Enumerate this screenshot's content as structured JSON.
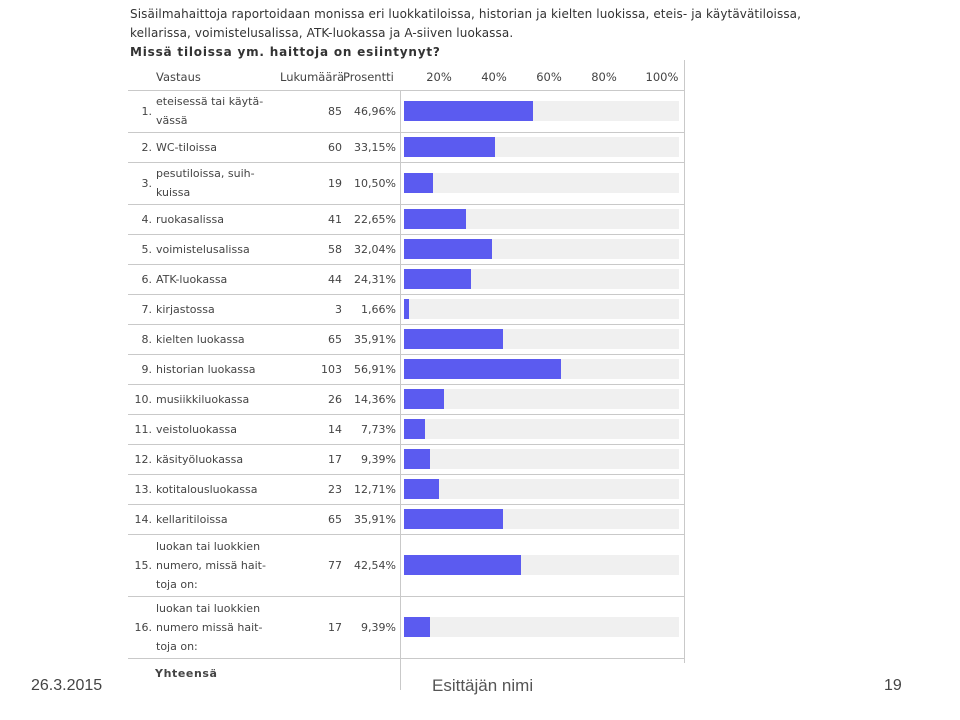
{
  "intro": {
    "line1": "Sisäilmahaittoja raportoidaan monissa eri luokkatiloissa, historian ja kielten luokissa, eteis- ja käytävätiloissa,",
    "line2": "kellarissa, voimistelusalissa, ATK-luokassa ja A-siiven luokassa.",
    "question": "Missä tiloissa ym. haittoja on esiintynyt?"
  },
  "table": {
    "headers": {
      "answer": "Vastaus",
      "count": "Lukumäärä",
      "percent": "Prosentti"
    },
    "total_label": "Yhteensä"
  },
  "chart_data": {
    "type": "bar",
    "orientation": "horizontal",
    "ticks": [
      "20%",
      "40%",
      "60%",
      "80%",
      "100%"
    ],
    "xlim": [
      0,
      100
    ],
    "bar_color": "#5b5bf0",
    "rows": [
      {
        "no": "1.",
        "lines": [
          "eteisessä tai käytä-",
          "vässä"
        ],
        "count": "85",
        "percent": "46,96%",
        "value": 46.96
      },
      {
        "no": "2.",
        "lines": [
          "WC-tiloissa"
        ],
        "count": "60",
        "percent": "33,15%",
        "value": 33.15
      },
      {
        "no": "3.",
        "lines": [
          "pesutiloissa, suih-",
          "kuissa"
        ],
        "count": "19",
        "percent": "10,50%",
        "value": 10.5
      },
      {
        "no": "4.",
        "lines": [
          "ruokasalissa"
        ],
        "count": "41",
        "percent": "22,65%",
        "value": 22.65
      },
      {
        "no": "5.",
        "lines": [
          "voimistelusalissa"
        ],
        "count": "58",
        "percent": "32,04%",
        "value": 32.04
      },
      {
        "no": "6.",
        "lines": [
          "ATK-luokassa"
        ],
        "count": "44",
        "percent": "24,31%",
        "value": 24.31
      },
      {
        "no": "7.",
        "lines": [
          "kirjastossa"
        ],
        "count": "3",
        "percent": "1,66%",
        "value": 1.66
      },
      {
        "no": "8.",
        "lines": [
          "kielten luokassa"
        ],
        "count": "65",
        "percent": "35,91%",
        "value": 35.91
      },
      {
        "no": "9.",
        "lines": [
          "historian luokassa"
        ],
        "count": "103",
        "percent": "56,91%",
        "value": 56.91
      },
      {
        "no": "10.",
        "lines": [
          "musiikkiluokassa"
        ],
        "count": "26",
        "percent": "14,36%",
        "value": 14.36
      },
      {
        "no": "11.",
        "lines": [
          "veistoluokassa"
        ],
        "count": "14",
        "percent": "7,73%",
        "value": 7.73
      },
      {
        "no": "12.",
        "lines": [
          "käsityöluokassa"
        ],
        "count": "17",
        "percent": "9,39%",
        "value": 9.39
      },
      {
        "no": "13.",
        "lines": [
          "kotitalousluokassa"
        ],
        "count": "23",
        "percent": "12,71%",
        "value": 12.71
      },
      {
        "no": "14.",
        "lines": [
          "kellaritiloissa"
        ],
        "count": "65",
        "percent": "35,91%",
        "value": 35.91
      },
      {
        "no": "15.",
        "lines": [
          "luokan tai luokkien",
          "numero, missä hait-",
          "toja on:"
        ],
        "count": "77",
        "percent": "42,54%",
        "value": 42.54
      },
      {
        "no": "16.",
        "lines": [
          "luokan tai luokkien",
          "numero missä hait-",
          "toja on:"
        ],
        "count": "17",
        "percent": "9,39%",
        "value": 9.39
      }
    ]
  },
  "footer": {
    "date": "26.3.2015",
    "presenter": "Esittäjän nimi",
    "page": "19"
  }
}
